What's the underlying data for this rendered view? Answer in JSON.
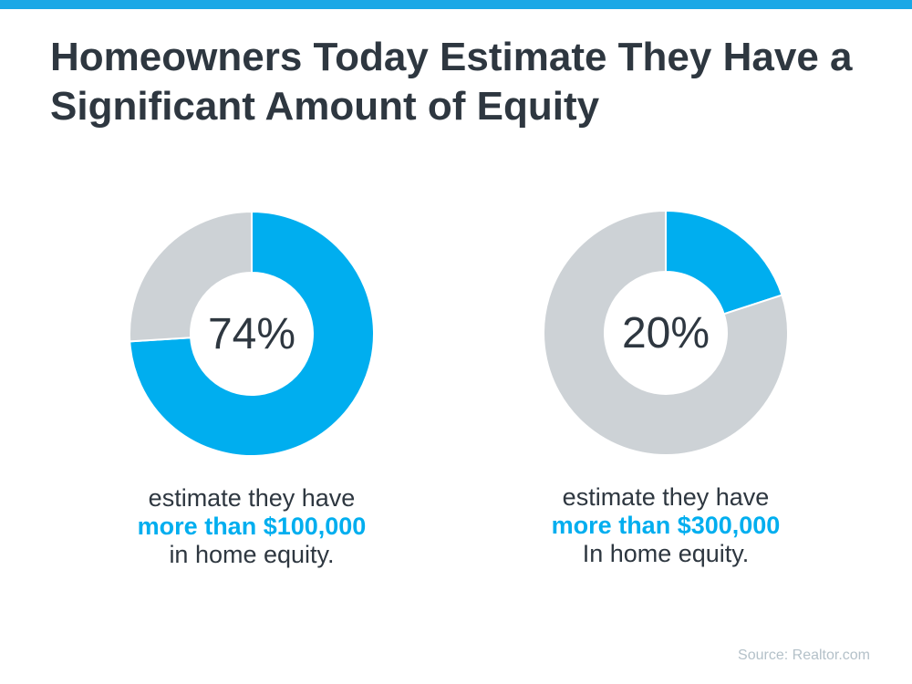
{
  "page": {
    "top_bar_color": "#1AA8E6",
    "background": "#FFFFFF"
  },
  "colors": {
    "accent_blue": "#00AEEF",
    "donut_gray": "#CDD2D6",
    "text_dark": "#2E3740",
    "source_gray": "#B4C1C9"
  },
  "title": {
    "lines": [
      "Homeowners Today Estimate They Have a",
      "Significant Amount of Equity"
    ]
  },
  "chart_data": [
    {
      "type": "pie",
      "subtype": "donut",
      "center_label": "74%",
      "start_angle_deg": 0,
      "direction": "clockwise",
      "slices": [
        {
          "label": "estimate they have more than $100,000 in home equity",
          "value": 74,
          "color": "#00AEEF"
        },
        {
          "label": "other",
          "value": 26,
          "color": "#CDD2D6"
        }
      ]
    },
    {
      "type": "pie",
      "subtype": "donut",
      "center_label": "20%",
      "start_angle_deg": 0,
      "direction": "clockwise",
      "slices": [
        {
          "label": "estimate they have more than $300,000 In home equity",
          "value": 20,
          "color": "#00AEEF"
        },
        {
          "label": "other",
          "value": 80,
          "color": "#CDD2D6"
        }
      ]
    }
  ],
  "charts": [
    {
      "center_label": "74%",
      "caption": {
        "line1": "estimate they have",
        "highlight": "more than $100,000",
        "line3": "in home equity."
      }
    },
    {
      "center_label": "20%",
      "caption": {
        "line1": "estimate they have",
        "highlight": "more than $300,000",
        "line3": "In home equity."
      }
    }
  ],
  "source": {
    "text": "Source: Realtor.com"
  }
}
